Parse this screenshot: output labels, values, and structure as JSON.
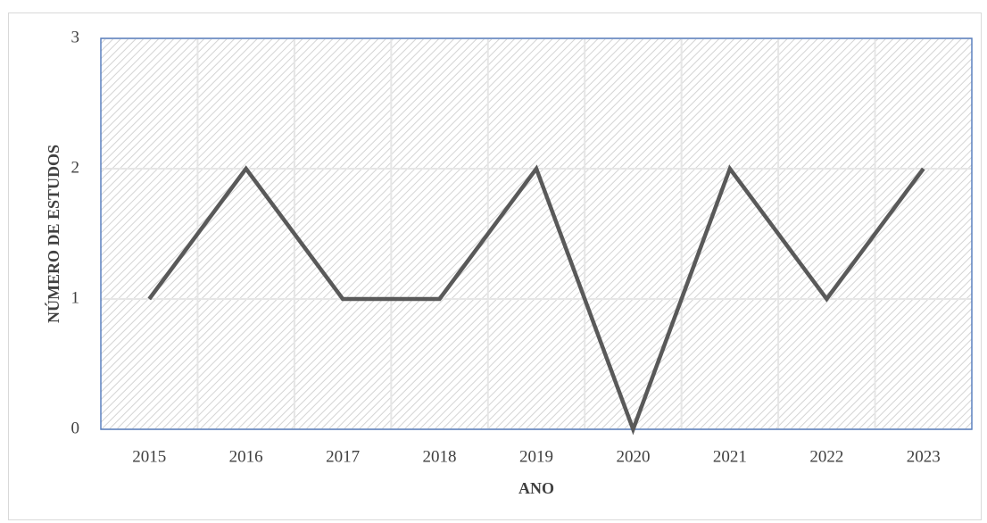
{
  "chart_data": {
    "type": "line",
    "x_label": "ANO",
    "y_label": "NÚMERO DE ESTUDOS",
    "categories": [
      "2015",
      "2016",
      "2017",
      "2018",
      "2019",
      "2020",
      "2021",
      "2022",
      "2023"
    ],
    "series": [
      {
        "name": "Número de estudos",
        "color": "#595959",
        "values": [
          1,
          2,
          1,
          1,
          2,
          0,
          2,
          1,
          2
        ]
      }
    ],
    "ylim": [
      0,
      3
    ],
    "yticks": [
      0,
      1,
      2,
      3
    ],
    "grid": true
  }
}
